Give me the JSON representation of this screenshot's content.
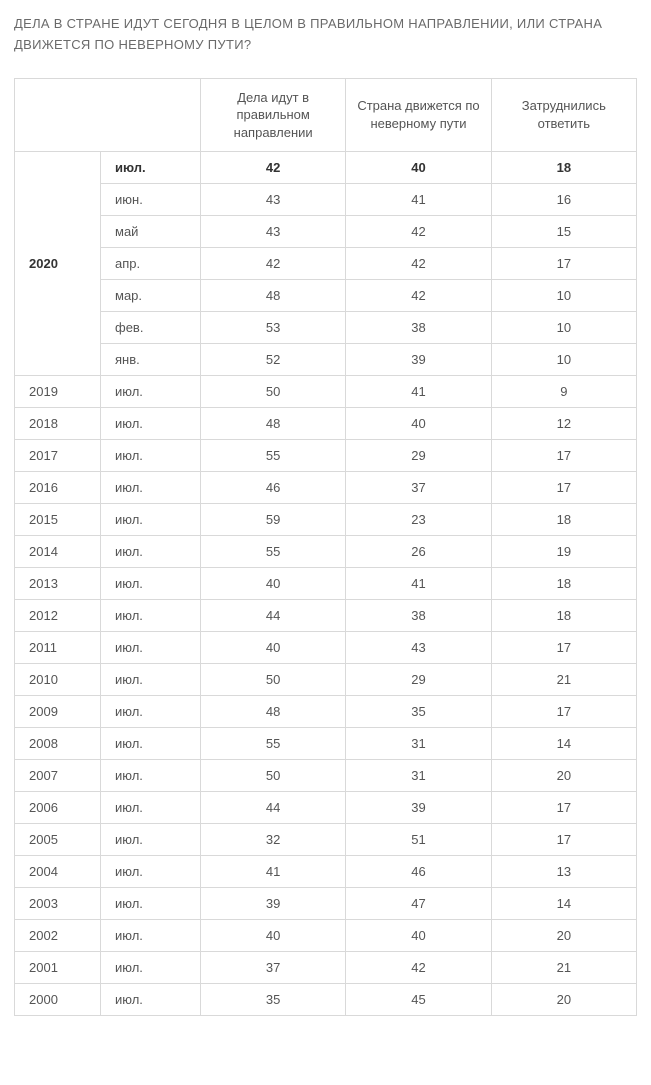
{
  "title": "ДЕЛА В СТРАНЕ ИДУТ СЕГОДНЯ В ЦЕЛОМ В ПРАВИЛЬНОМ НАПРАВЛЕНИИ, ИЛИ СТРАНА ДВИЖЕТСЯ ПО НЕВЕРНОМУ ПУТИ?",
  "columns": [
    "Дела идут в правильном направлении",
    "Страна движется по неверному пути",
    "Затруднились ответить"
  ],
  "groups": [
    {
      "year": "2020",
      "rows": [
        {
          "month": "июл.",
          "v": [
            "42",
            "40",
            "18"
          ],
          "bold": true
        },
        {
          "month": "июн.",
          "v": [
            "43",
            "41",
            "16"
          ]
        },
        {
          "month": "май",
          "v": [
            "43",
            "42",
            "15"
          ]
        },
        {
          "month": "апр.",
          "v": [
            "42",
            "42",
            "17"
          ]
        },
        {
          "month": "мар.",
          "v": [
            "48",
            "42",
            "10"
          ]
        },
        {
          "month": "фев.",
          "v": [
            "53",
            "38",
            "10"
          ]
        },
        {
          "month": "янв.",
          "v": [
            "52",
            "39",
            "10"
          ]
        }
      ]
    },
    {
      "year": "2019",
      "rows": [
        {
          "month": "июл.",
          "v": [
            "50",
            "41",
            "9"
          ]
        }
      ]
    },
    {
      "year": "2018",
      "rows": [
        {
          "month": "июл.",
          "v": [
            "48",
            "40",
            "12"
          ]
        }
      ]
    },
    {
      "year": "2017",
      "rows": [
        {
          "month": "июл.",
          "v": [
            "55",
            "29",
            "17"
          ]
        }
      ]
    },
    {
      "year": "2016",
      "rows": [
        {
          "month": "июл.",
          "v": [
            "46",
            "37",
            "17"
          ]
        }
      ]
    },
    {
      "year": "2015",
      "rows": [
        {
          "month": "июл.",
          "v": [
            "59",
            "23",
            "18"
          ]
        }
      ]
    },
    {
      "year": "2014",
      "rows": [
        {
          "month": "июл.",
          "v": [
            "55",
            "26",
            "19"
          ]
        }
      ]
    },
    {
      "year": "2013",
      "rows": [
        {
          "month": "июл.",
          "v": [
            "40",
            "41",
            "18"
          ]
        }
      ]
    },
    {
      "year": "2012",
      "rows": [
        {
          "month": "июл.",
          "v": [
            "44",
            "38",
            "18"
          ]
        }
      ]
    },
    {
      "year": "2011",
      "rows": [
        {
          "month": "июл.",
          "v": [
            "40",
            "43",
            "17"
          ]
        }
      ]
    },
    {
      "year": "2010",
      "rows": [
        {
          "month": "июл.",
          "v": [
            "50",
            "29",
            "21"
          ]
        }
      ]
    },
    {
      "year": "2009",
      "rows": [
        {
          "month": "июл.",
          "v": [
            "48",
            "35",
            "17"
          ]
        }
      ]
    },
    {
      "year": "2008",
      "rows": [
        {
          "month": "июл.",
          "v": [
            "55",
            "31",
            "14"
          ]
        }
      ]
    },
    {
      "year": "2007",
      "rows": [
        {
          "month": "июл.",
          "v": [
            "50",
            "31",
            "20"
          ]
        }
      ]
    },
    {
      "year": "2006",
      "rows": [
        {
          "month": "июл.",
          "v": [
            "44",
            "39",
            "17"
          ]
        }
      ]
    },
    {
      "year": "2005",
      "rows": [
        {
          "month": "июл.",
          "v": [
            "32",
            "51",
            "17"
          ]
        }
      ]
    },
    {
      "year": "2004",
      "rows": [
        {
          "month": "июл.",
          "v": [
            "41",
            "46",
            "13"
          ]
        }
      ]
    },
    {
      "year": "2003",
      "rows": [
        {
          "month": "июл.",
          "v": [
            "39",
            "47",
            "14"
          ]
        }
      ]
    },
    {
      "year": "2002",
      "rows": [
        {
          "month": "июл.",
          "v": [
            "40",
            "40",
            "20"
          ]
        }
      ]
    },
    {
      "year": "2001",
      "rows": [
        {
          "month": "июл.",
          "v": [
            "37",
            "42",
            "21"
          ]
        }
      ]
    },
    {
      "year": "2000",
      "rows": [
        {
          "month": "июл.",
          "v": [
            "35",
            "45",
            "20"
          ]
        }
      ]
    }
  ],
  "style": {
    "background_color": "#ffffff",
    "border_color": "#d9d9d9",
    "text_color": "#555555",
    "title_color": "#6a6a6a",
    "bold_color": "#333333",
    "header_fontsize": 13,
    "cell_fontsize": 13,
    "title_fontsize": 13,
    "col_year_width": 86,
    "col_month_width": 100
  }
}
